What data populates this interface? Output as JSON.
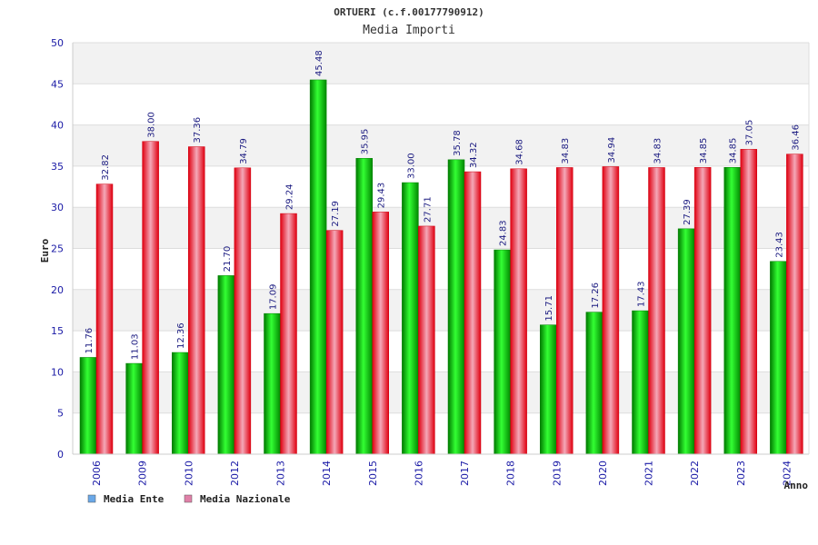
{
  "chart_data": {
    "type": "bar",
    "title": "ORTUERI (c.f.00177790912)",
    "subtitle": "Media Importi",
    "xlabel": "Anno",
    "ylabel": "Euro",
    "ylim": [
      0,
      50
    ],
    "yticks": [
      0,
      5,
      10,
      15,
      20,
      25,
      30,
      35,
      40,
      45,
      50
    ],
    "grid": true,
    "legend_position": "bottom-left",
    "categories": [
      "2006",
      "2009",
      "2010",
      "2012",
      "2013",
      "2014",
      "2015",
      "2016",
      "2017",
      "2018",
      "2019",
      "2020",
      "2021",
      "2022",
      "2023",
      "2024"
    ],
    "series": [
      {
        "name": "Media Ente",
        "color": "#00b000",
        "legend_color": "#6aa8e8",
        "values": [
          11.76,
          11.03,
          12.36,
          21.7,
          17.09,
          45.48,
          35.95,
          33.0,
          35.78,
          24.83,
          15.71,
          17.26,
          17.43,
          27.39,
          34.85,
          23.43
        ],
        "labels": [
          "11.76",
          "11.03",
          "12.36",
          "21.70",
          "17.09",
          "45.48",
          "35.95",
          "33.00",
          "35.78",
          "24.83",
          "15.71",
          "17.26",
          "17.43",
          "27.39",
          "34.85",
          "23.43"
        ]
      },
      {
        "name": "Media Nazionale",
        "color": "#e8101c",
        "legend_color": "#e080a8",
        "values": [
          32.82,
          38.0,
          37.36,
          34.79,
          29.24,
          27.19,
          29.43,
          27.71,
          34.32,
          34.68,
          34.83,
          34.94,
          34.83,
          34.85,
          37.05,
          36.46
        ],
        "labels": [
          "32.82",
          "38.00",
          "37.36",
          "34.79",
          "29.24",
          "27.19",
          "29.43",
          "27.71",
          "34.32",
          "34.68",
          "34.83",
          "34.94",
          "34.83",
          "34.85",
          "37.05",
          "36.46"
        ]
      }
    ]
  }
}
